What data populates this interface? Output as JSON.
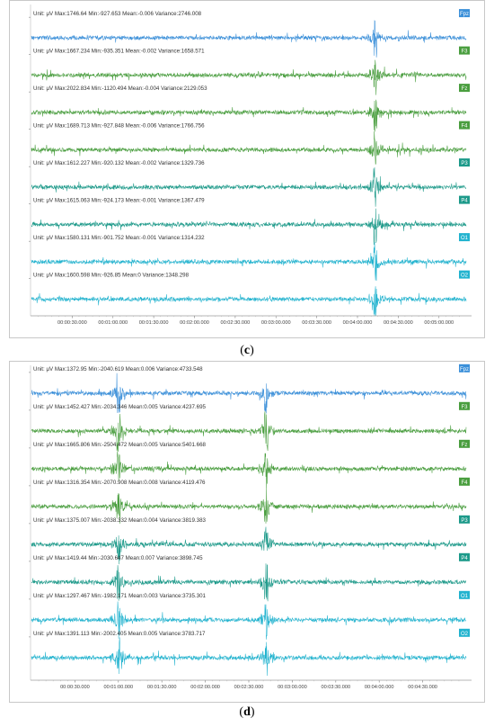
{
  "chart_data": [
    {
      "panel_label": "c",
      "type": "line",
      "x_ticks": [
        "00:00:30.000",
        "00:01:00.000",
        "00:01:30.000",
        "00:02:00.000",
        "00:02:30.000",
        "00:03:00.000",
        "00:03:30.000",
        "00:04:00.000",
        "00:04:30.000",
        "00:05:00.000"
      ],
      "x_range_seconds": [
        0,
        320
      ],
      "event_seconds": [
        253
      ],
      "series": [
        {
          "name": "Fpz",
          "color": "#3a8fd9",
          "stats": "Unit: μV  Max:1746.64  Min:-927.653  Mean:-0.006  Variance:2746.008"
        },
        {
          "name": "F3",
          "color": "#4a9e3f",
          "stats": "Unit: μV  Max:1667.234  Min:-935.351  Mean:-0.002  Variance:1658.571"
        },
        {
          "name": "Fz",
          "color": "#4a9e3f",
          "stats": "Unit: μV  Max:2022.834  Min:-1120.494  Mean:-0.004  Variance:2129.053"
        },
        {
          "name": "F4",
          "color": "#4a9e3f",
          "stats": "Unit: μV  Max:1689.713  Min:-927.848  Mean:-0.006  Variance:1766.756"
        },
        {
          "name": "P3",
          "color": "#1d9a8a",
          "stats": "Unit: μV  Max:1612.227  Min:-920.132  Mean:-0.002  Variance:1329.736"
        },
        {
          "name": "P4",
          "color": "#1d9a8a",
          "stats": "Unit: μV  Max:1615.063  Min:-924.173  Mean:-0.001  Variance:1367.479"
        },
        {
          "name": "O1",
          "color": "#22b3cf",
          "stats": "Unit: μV  Max:1580.131  Min:-901.752  Mean:-0.001  Variance:1314.232"
        },
        {
          "name": "O2",
          "color": "#22b3cf",
          "stats": "Unit: μV  Max:1600.598  Min:-926.85  Mean:0  Variance:1348.298"
        }
      ]
    },
    {
      "panel_label": "d",
      "type": "line",
      "x_ticks": [
        "00:00:30.000",
        "00:01:00.000",
        "00:01:30.000",
        "00:02:00.000",
        "00:02:30.000",
        "00:03:00.000",
        "00:03:30.000",
        "00:04:00.000",
        "00:04:30.000"
      ],
      "x_range_seconds": [
        0,
        300
      ],
      "event_seconds": [
        60,
        162
      ],
      "series": [
        {
          "name": "Fpz",
          "color": "#3a8fd9",
          "stats": "Unit: μV  Max:1372.95  Min:-2040.619  Mean:0.006  Variance:4733.548"
        },
        {
          "name": "F3",
          "color": "#4a9e3f",
          "stats": "Unit: μV  Max:1452.427  Min:-2034.346  Mean:0.005  Variance:4237.695"
        },
        {
          "name": "Fz",
          "color": "#4a9e3f",
          "stats": "Unit: μV  Max:1665.806  Min:-2504.472  Mean:0.005  Variance:5401.668"
        },
        {
          "name": "F4",
          "color": "#4a9e3f",
          "stats": "Unit: μV  Max:1316.354  Min:-2070.908  Mean:0.008  Variance:4119.476"
        },
        {
          "name": "P3",
          "color": "#1d9a8a",
          "stats": "Unit: μV  Max:1375.007  Min:-2038.332  Mean:0.004  Variance:3819.383"
        },
        {
          "name": "P4",
          "color": "#1d9a8a",
          "stats": "Unit: μV  Max:1419.44  Min:-2030.647  Mean:0.007  Variance:3898.745"
        },
        {
          "name": "O1",
          "color": "#22b3cf",
          "stats": "Unit: μV  Max:1297.467  Min:-1982.171  Mean:0.003  Variance:3735.301"
        },
        {
          "name": "O2",
          "color": "#22b3cf",
          "stats": "Unit: μV  Max:1391.113  Min:-2002.405  Mean:0.005  Variance:3783.717"
        }
      ]
    }
  ]
}
